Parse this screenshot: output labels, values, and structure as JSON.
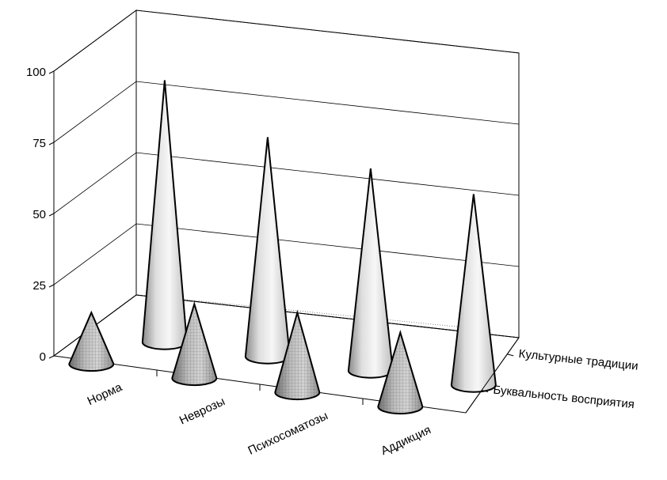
{
  "chart_data": {
    "type": "bar",
    "style": "3d-cone",
    "categories": [
      "Норма",
      "Неврозы",
      "Психосоматозы",
      "Аддикция"
    ],
    "series": [
      {
        "name": "Буквальность восприятия",
        "values": [
          18,
          26,
          28,
          26
        ],
        "fill": "hatched-grey"
      },
      {
        "name": "Культурные традиции",
        "values": [
          92,
          77,
          71,
          67
        ],
        "fill": "light-grey"
      }
    ],
    "yticks": [
      0,
      25,
      50,
      75,
      100
    ],
    "ylim": [
      0,
      100
    ],
    "grid": true,
    "title": "",
    "xlabel": "",
    "ylabel": ""
  }
}
